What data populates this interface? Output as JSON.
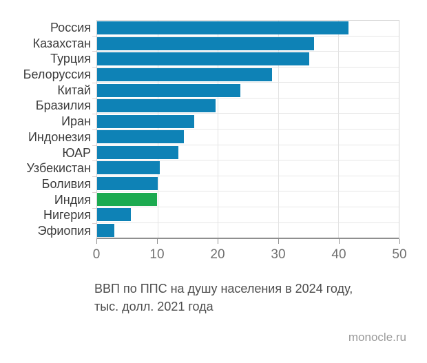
{
  "chart_data": {
    "type": "bar",
    "orientation": "horizontal",
    "title": "ВВП по ППС на душу населения в 2024 году, тыс. долл. 2021 года",
    "categories": [
      "Россия",
      "Казахстан",
      "Турция",
      "Белоруссия",
      "Китай",
      "Бразилия",
      "Иран",
      "Индонезия",
      "ЮАР",
      "Узбекистан",
      "Боливия",
      "Индия",
      "Нигерия",
      "Эфиопия"
    ],
    "values": [
      41.7,
      36.0,
      35.2,
      29.0,
      23.8,
      19.6,
      16.1,
      14.4,
      13.5,
      10.4,
      10.0,
      9.9,
      5.6,
      2.9
    ],
    "highlight_category": "Индия",
    "highlight_index": 11,
    "bar_color": "#0e82b6",
    "highlight_color": "#1caa50",
    "x_ticks": [
      0,
      10,
      20,
      30,
      40,
      50
    ],
    "xlim": [
      0,
      50
    ],
    "grid": true,
    "legend": false
  },
  "caption": {
    "line1": "ВВП по ППС на душу населения в 2024 году,",
    "line2": "тыс. долл. 2021 года"
  },
  "source": "monocle.ru"
}
